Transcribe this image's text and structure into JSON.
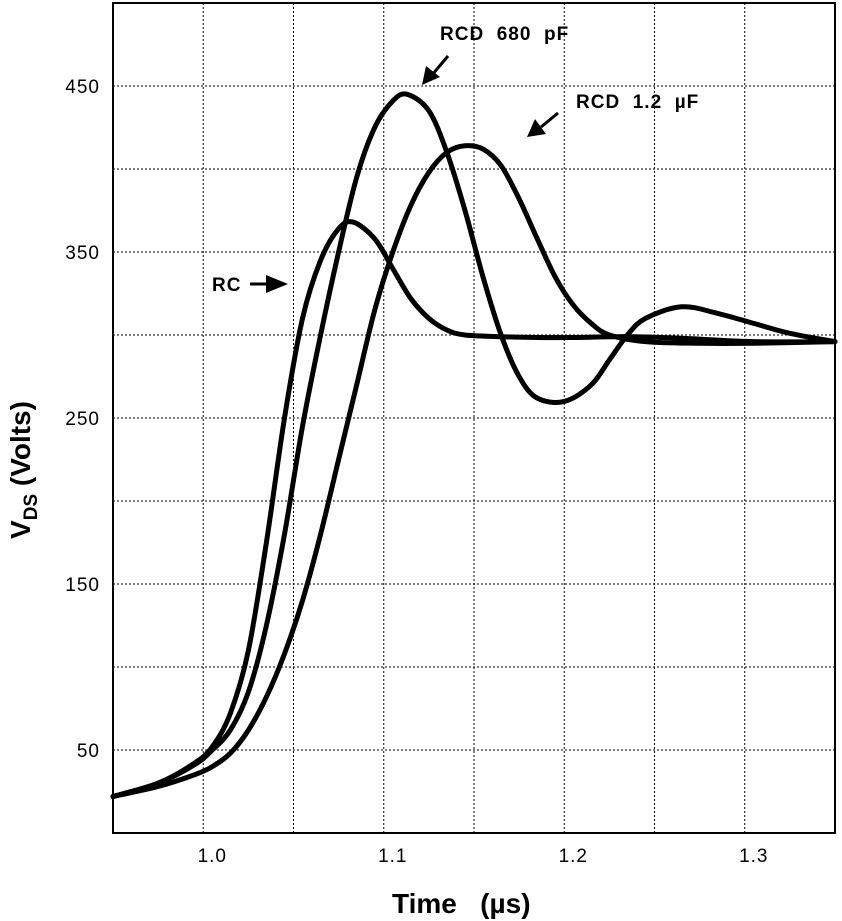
{
  "chart_data": {
    "type": "line",
    "xlabel": "Time   (µs)",
    "ylabel_main": "V",
    "ylabel_sub": "DS",
    "ylabel_rest": " (Volts)",
    "xlim": [
      0.945,
      1.345
    ],
    "ylim": [
      0,
      500
    ],
    "x_ticks": [
      1.0,
      1.1,
      1.2,
      1.3
    ],
    "x_tick_labels": [
      "1.0",
      "1.1",
      "1.2",
      "1.3"
    ],
    "y_ticks": [
      50,
      150,
      250,
      350,
      450
    ],
    "y_tick_labels": [
      "50",
      "150",
      "250",
      "350",
      "450"
    ],
    "x_grid": [
      0.995,
      1.045,
      1.095,
      1.145,
      1.195,
      1.245,
      1.295
    ],
    "y_grid": [
      50,
      100,
      150,
      200,
      250,
      300,
      350,
      400,
      450
    ],
    "grid": true,
    "series": [
      {
        "name": "RC",
        "points": [
          [
            0.945,
            22
          ],
          [
            0.97,
            30
          ],
          [
            0.99,
            42
          ],
          [
            1.0,
            52
          ],
          [
            1.01,
            72
          ],
          [
            1.02,
            110
          ],
          [
            1.03,
            175
          ],
          [
            1.04,
            250
          ],
          [
            1.05,
            310
          ],
          [
            1.06,
            345
          ],
          [
            1.07,
            364
          ],
          [
            1.078,
            368
          ],
          [
            1.09,
            358
          ],
          [
            1.1,
            340
          ],
          [
            1.11,
            322
          ],
          [
            1.12,
            310
          ],
          [
            1.13,
            303
          ],
          [
            1.14,
            300
          ],
          [
            1.16,
            299
          ],
          [
            1.18,
            298.5
          ],
          [
            1.2,
            298.5
          ],
          [
            1.23,
            299
          ],
          [
            1.26,
            298
          ],
          [
            1.3,
            296
          ],
          [
            1.345,
            296
          ]
        ]
      },
      {
        "name": "RCD 680 pF",
        "points": [
          [
            0.945,
            22
          ],
          [
            0.97,
            30
          ],
          [
            0.99,
            41
          ],
          [
            1.0,
            50
          ],
          [
            1.01,
            62
          ],
          [
            1.02,
            85
          ],
          [
            1.03,
            125
          ],
          [
            1.04,
            180
          ],
          [
            1.05,
            245
          ],
          [
            1.06,
            300
          ],
          [
            1.07,
            350
          ],
          [
            1.08,
            395
          ],
          [
            1.09,
            425
          ],
          [
            1.1,
            441
          ],
          [
            1.108,
            445
          ],
          [
            1.12,
            435
          ],
          [
            1.13,
            410
          ],
          [
            1.14,
            375
          ],
          [
            1.15,
            335
          ],
          [
            1.16,
            300
          ],
          [
            1.17,
            275
          ],
          [
            1.18,
            262
          ],
          [
            1.195,
            260
          ],
          [
            1.21,
            270
          ],
          [
            1.22,
            285
          ],
          [
            1.23,
            300
          ],
          [
            1.24,
            310
          ],
          [
            1.26,
            317
          ],
          [
            1.28,
            313
          ],
          [
            1.3,
            307
          ],
          [
            1.32,
            301
          ],
          [
            1.345,
            296
          ]
        ]
      },
      {
        "name": "RCD 1.2 µF",
        "points": [
          [
            0.945,
            22
          ],
          [
            0.97,
            28
          ],
          [
            0.99,
            35
          ],
          [
            1.0,
            40
          ],
          [
            1.01,
            48
          ],
          [
            1.02,
            62
          ],
          [
            1.03,
            82
          ],
          [
            1.04,
            108
          ],
          [
            1.05,
            140
          ],
          [
            1.06,
            180
          ],
          [
            1.07,
            225
          ],
          [
            1.08,
            270
          ],
          [
            1.09,
            315
          ],
          [
            1.1,
            350
          ],
          [
            1.11,
            378
          ],
          [
            1.12,
            398
          ],
          [
            1.13,
            410
          ],
          [
            1.14,
            414
          ],
          [
            1.15,
            412
          ],
          [
            1.16,
            402
          ],
          [
            1.17,
            382
          ],
          [
            1.18,
            358
          ],
          [
            1.19,
            335
          ],
          [
            1.2,
            318
          ],
          [
            1.21,
            307
          ],
          [
            1.22,
            300
          ],
          [
            1.24,
            296
          ],
          [
            1.27,
            295
          ],
          [
            1.3,
            295
          ],
          [
            1.345,
            296
          ]
        ]
      }
    ],
    "annotations": [
      {
        "text": "RCD  680  pF",
        "series": "RCD 680 pF"
      },
      {
        "text": "RCD  1.2  µF",
        "series": "RCD 1.2 µF"
      },
      {
        "text": "RC",
        "series": "RC"
      }
    ]
  }
}
